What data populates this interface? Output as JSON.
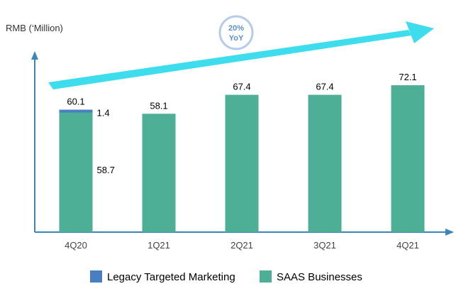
{
  "chart_data": {
    "type": "bar",
    "stacked": true,
    "ylabel": "RMB (‘Million)",
    "categories": [
      "4Q20",
      "1Q21",
      "2Q21",
      "3Q21",
      "4Q21"
    ],
    "series": [
      {
        "name": "SAAS Businesses",
        "color": "#4CAF96",
        "values": [
          58.7,
          58.1,
          67.4,
          67.4,
          72.1
        ]
      },
      {
        "name": "Legacy Targeted Marketing",
        "color": "#4A7EC2",
        "values": [
          1.4,
          0,
          0,
          0,
          0
        ]
      }
    ],
    "totals": [
      "60.1",
      "58.1",
      "67.4",
      "67.4",
      "72.1"
    ],
    "segment_labels": {
      "legacy_4Q20": "1.4",
      "saas_4Q20": "58.7"
    },
    "ylim": [
      0,
      90
    ],
    "grid": false,
    "legend_position": "bottom",
    "annotations": [
      {
        "line1": "20%",
        "line2": "YoY"
      }
    ],
    "trend_arrow_color": "#3DDDEE"
  }
}
